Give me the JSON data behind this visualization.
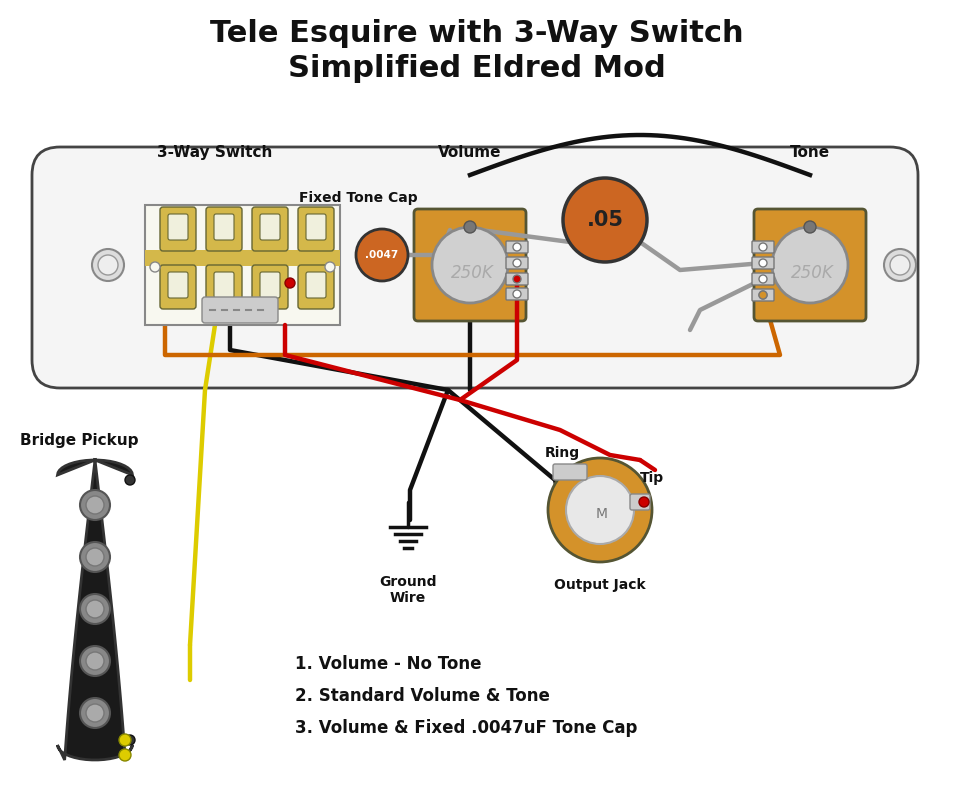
{
  "title_line1": "Tele Esquire with 3-Way Switch",
  "title_line2": "Simplified Eldred Mod",
  "title_fontsize": 22,
  "bg_color": "#ffffff",
  "plate_color": "#f5f5f5",
  "plate_border": "#444444",
  "label_switch": "3-Way Switch",
  "label_volume": "Volume",
  "label_tone": "Tone",
  "label_fixed_tone_cap": "Fixed Tone Cap",
  "label_bridge_pickup": "Bridge Pickup",
  "label_ground_wire": "Ground\nWire",
  "label_ring": "Ring",
  "label_tip": "Tip",
  "label_output_jack": "Output Jack",
  "notes": [
    "1. Volume - No Tone",
    "2. Standard Volume & Tone",
    "3. Volume & Fixed .0047uF Tone Cap"
  ],
  "pot_color": "#d4922a",
  "pot_knob_color": "#cccccc",
  "pot_text": "250K",
  "cap_color": "#cc6600",
  "cap_small_text": ".0047",
  "cap_big_text": ".05",
  "switch_body_color": "#f0f0e0",
  "switch_tab_color": "#d4b84a",
  "pickup_color": "#1a1a1a",
  "pickup_pole_color": "#888888",
  "jack_color": "#d4922a",
  "wire_black": "#111111",
  "wire_red": "#cc0000",
  "wire_yellow": "#ddcc00",
  "wire_orange": "#cc6600",
  "wire_gray": "#999999",
  "ground_symbol_color": "#111111"
}
